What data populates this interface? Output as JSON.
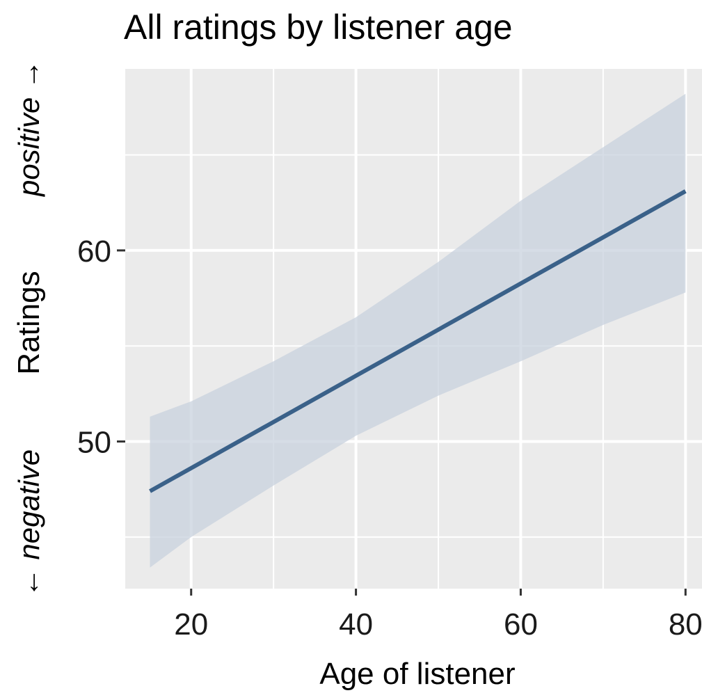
{
  "chart_data": {
    "type": "line",
    "title": "All ratings by listener age",
    "xlabel": "Age of listener",
    "ylabel": "Ratings",
    "ylabel_top": "positive →",
    "ylabel_bottom": "← negative",
    "xlim": [
      12,
      82
    ],
    "ylim": [
      42.3,
      69.5
    ],
    "x_ticks": [
      20,
      40,
      60,
      80
    ],
    "x_minor": [
      30,
      50,
      70
    ],
    "y_ticks": [
      50,
      60
    ],
    "y_minor": [
      45,
      55,
      65
    ],
    "grid": true,
    "series": [
      {
        "color": "#3a6189",
        "x": [
          15,
          80
        ],
        "y": [
          47.4,
          63.1
        ],
        "ribbon": {
          "color": "#c8d1dd",
          "x": [
            15,
            20,
            30,
            40,
            50,
            60,
            70,
            80
          ],
          "upper": [
            51.3,
            52.1,
            54.2,
            56.5,
            59.4,
            62.6,
            65.4,
            68.2
          ],
          "lower": [
            43.4,
            45.0,
            47.7,
            50.3,
            52.4,
            54.2,
            56.1,
            57.8
          ]
        }
      }
    ]
  }
}
